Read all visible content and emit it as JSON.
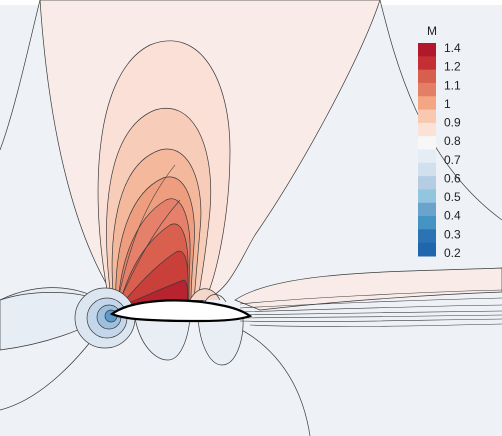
{
  "legend": {
    "title": "M",
    "labels": [
      "1.4",
      "1.2",
      "1.1",
      "1",
      "0.9",
      "0.8",
      "0.7",
      "0.6",
      "0.5",
      "0.4",
      "0.3",
      "0.2"
    ]
  },
  "colors": {
    "far_field": "#eef1f6",
    "contour_line": "#3a3a3a",
    "airfoil": "#ffffff",
    "airfoil_outline": "#000000",
    "scale": [
      "#b2182b",
      "#c42f33",
      "#d6604d",
      "#e37f66",
      "#f4a582",
      "#f8c8b0",
      "#fbe2d6",
      "#f7f7f7",
      "#e4ecf4",
      "#d1e0ee",
      "#b4cde3",
      "#92c5de",
      "#6aa4cd",
      "#4393c3",
      "#2c73b4",
      "#2166ac"
    ]
  }
}
